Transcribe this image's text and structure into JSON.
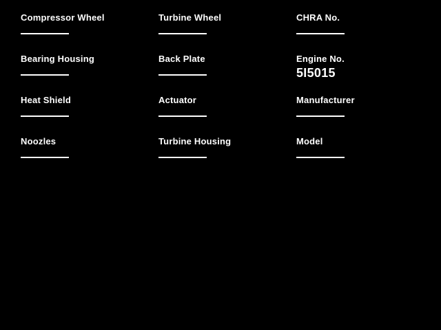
{
  "page": {
    "background_color": "#000000",
    "text_color": "#ffffff"
  },
  "form": {
    "columns": [
      {
        "fields": [
          {
            "label": "Compressor Wheel",
            "value": ""
          },
          {
            "label": "Bearing Housing",
            "value": ""
          },
          {
            "label": "Heat Shield",
            "value": ""
          },
          {
            "label": "Noozles",
            "value": ""
          }
        ]
      },
      {
        "fields": [
          {
            "label": "Turbine Wheel",
            "value": ""
          },
          {
            "label": "Back Plate",
            "value": ""
          },
          {
            "label": "Actuator",
            "value": ""
          },
          {
            "label": "Turbine Housing",
            "value": ""
          }
        ]
      },
      {
        "fields": [
          {
            "label": "CHRA No.",
            "value": ""
          },
          {
            "label": "Engine No.",
            "value": "5I5015"
          },
          {
            "label": "Manufacturer",
            "value": ""
          },
          {
            "label": "Model",
            "value": ""
          }
        ]
      }
    ]
  }
}
